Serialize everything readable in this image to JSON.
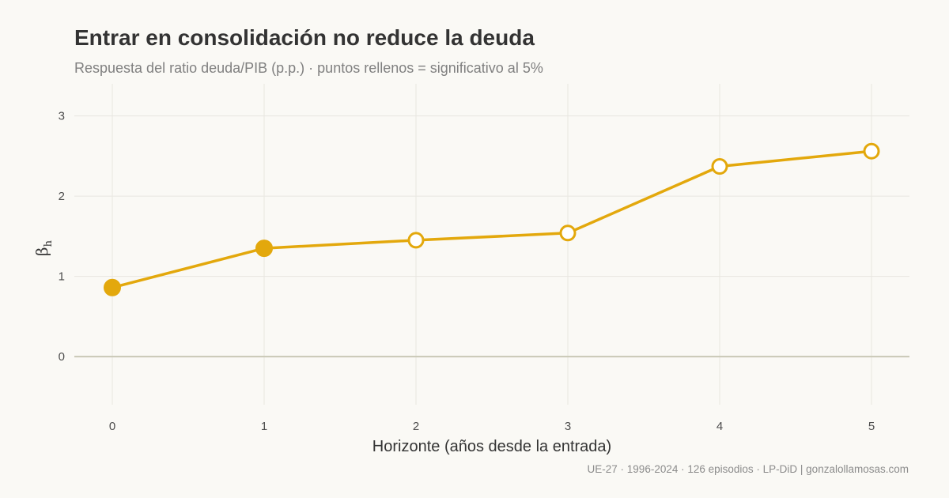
{
  "title": "Entrar en consolidación no reduce la deuda",
  "subtitle": "Respuesta del ratio deuda/PIB (p.p.) · puntos rellenos = significativo al 5%",
  "caption": "UE-27 · 1996-2024 · 126 episodios · LP-DiD  |  gonzalollamosas.com",
  "colors": {
    "background": "#faf9f5",
    "line": "#e3a80c",
    "grid": "#e8e6e0",
    "zero_line": "#c9c8b6"
  },
  "chart_data": {
    "type": "line",
    "title": "Entrar en consolidación no reduce la deuda",
    "subtitle": "Respuesta del ratio deuda/PIB (p.p.) · puntos rellenos = significativo al 5%",
    "xlabel": "Horizonte (años desde la entrada)",
    "ylabel_main": "β",
    "ylabel_sub": "h",
    "x": [
      0,
      1,
      2,
      3,
      4,
      5
    ],
    "y": [
      0.86,
      1.35,
      1.45,
      1.54,
      2.37,
      2.56
    ],
    "significant": [
      true,
      true,
      false,
      false,
      false,
      false
    ],
    "xticks": [
      0,
      1,
      2,
      3,
      4,
      5
    ],
    "yticks": [
      0,
      1,
      2,
      3
    ],
    "xlim": [
      -0.25,
      5.25
    ],
    "ylim": [
      -0.6,
      3.4
    ],
    "grid": true,
    "zero_line": true
  }
}
